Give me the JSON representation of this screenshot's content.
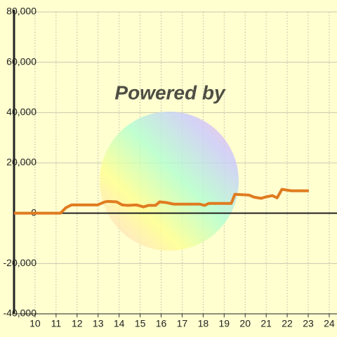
{
  "chart_data": {
    "type": "line",
    "watermark": "Powered by",
    "x": [
      9,
      11.21,
      11.47,
      11.74,
      12.98,
      13.32,
      13.48,
      13.88,
      14.15,
      14.42,
      14.82,
      15.16,
      15.39,
      15.73,
      15.93,
      16.26,
      16.6,
      17.84,
      18.07,
      18.27,
      19.34,
      19.51,
      20.18,
      20.42,
      20.75,
      20.95,
      21.29,
      21.52,
      21.75,
      22.19,
      23.03
    ],
    "series": [
      {
        "color": "#e07b20",
        "values": [
          0,
          0,
          2200,
          3300,
          3300,
          4500,
          4700,
          4500,
          3300,
          3100,
          3300,
          2500,
          3100,
          3100,
          4500,
          4200,
          3600,
          3600,
          3100,
          3900,
          3900,
          7500,
          7200,
          6400,
          5900,
          6400,
          7000,
          6100,
          9500,
          8900,
          8900
        ]
      }
    ],
    "xlim": [
      9,
      24.37
    ],
    "xticks": [
      10,
      11,
      12,
      13,
      14,
      15,
      16,
      17,
      18,
      19,
      20,
      21,
      22,
      23,
      24
    ],
    "ylim": [
      -40000,
      80000
    ],
    "yticks": [
      {
        "value": -40000,
        "label": "-40,000"
      },
      {
        "value": -20000,
        "label": "-20,000"
      },
      0,
      {
        "value": 20000,
        "label": "20,000"
      },
      {
        "value": 40000,
        "label": "40,000"
      },
      {
        "value": 60000,
        "label": "60,000"
      },
      {
        "value": 80000,
        "label": "80,000"
      }
    ],
    "grid": true
  }
}
